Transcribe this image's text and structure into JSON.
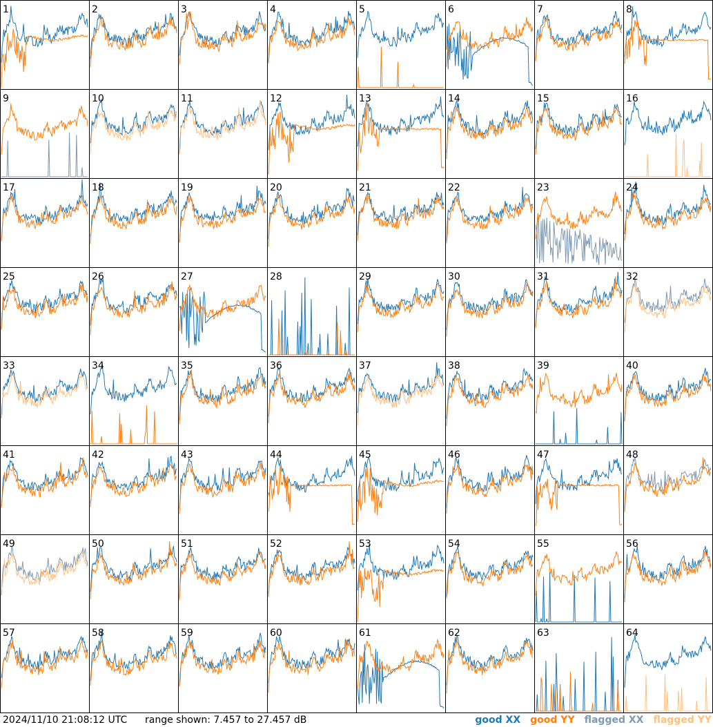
{
  "footer": {
    "timestamp": "2024/11/10 21:08:12 UTC",
    "range_text": "range shown: 7.457 to 27.457 dB"
  },
  "legend": {
    "good_xx": {
      "label": "good XX",
      "color": "#1f77b4"
    },
    "good_yy": {
      "label": "good YY",
      "color": "#ff7f0e"
    },
    "flagged_xx": {
      "label": "flagged XX",
      "color": "#7f99b2"
    },
    "flagged_yy": {
      "label": "flagged YY",
      "color": "#ffc080"
    }
  },
  "chart_data": {
    "type": "line",
    "layout": "small-multiples 8x8",
    "ylim_db": [
      7.457,
      27.457
    ],
    "xlabel": "",
    "ylabel": "",
    "grid": false,
    "legend_position": "bottom-right",
    "panels": [
      {
        "id": "1",
        "xx": "good",
        "yy": "good",
        "profile": "dip"
      },
      {
        "id": "2",
        "xx": "good",
        "yy": "good",
        "profile": "normal"
      },
      {
        "id": "3",
        "xx": "good",
        "yy": "good",
        "profile": "normal"
      },
      {
        "id": "4",
        "xx": "good",
        "yy": "good",
        "profile": "normal"
      },
      {
        "id": "5",
        "xx": "good",
        "yy": "good",
        "profile": "yy-spikes"
      },
      {
        "id": "6",
        "xx": "good",
        "yy": "good",
        "profile": "xx-arch"
      },
      {
        "id": "7",
        "xx": "good",
        "yy": "good",
        "profile": "normal"
      },
      {
        "id": "8",
        "xx": "good",
        "yy": "good",
        "profile": "yy-flat"
      },
      {
        "id": "9",
        "xx": "flagged",
        "yy": "good",
        "profile": "xx-spikes"
      },
      {
        "id": "10",
        "xx": "good",
        "yy": "flagged",
        "profile": "normal"
      },
      {
        "id": "11",
        "xx": "good",
        "yy": "flagged",
        "profile": "normal"
      },
      {
        "id": "12",
        "xx": "good",
        "yy": "good",
        "profile": "dip"
      },
      {
        "id": "13",
        "xx": "good",
        "yy": "good",
        "profile": "yy-flat"
      },
      {
        "id": "14",
        "xx": "good",
        "yy": "good",
        "profile": "normal"
      },
      {
        "id": "15",
        "xx": "good",
        "yy": "good",
        "profile": "normal"
      },
      {
        "id": "16",
        "xx": "good",
        "yy": "flagged",
        "profile": "yy-spikes"
      },
      {
        "id": "17",
        "xx": "good",
        "yy": "good",
        "profile": "normal"
      },
      {
        "id": "18",
        "xx": "good",
        "yy": "good",
        "profile": "normal"
      },
      {
        "id": "19",
        "xx": "good",
        "yy": "good",
        "profile": "normal"
      },
      {
        "id": "20",
        "xx": "good",
        "yy": "good",
        "profile": "normal"
      },
      {
        "id": "21",
        "xx": "good",
        "yy": "good",
        "profile": "normal"
      },
      {
        "id": "22",
        "xx": "good",
        "yy": "good",
        "profile": "normal"
      },
      {
        "id": "23",
        "xx": "flagged",
        "yy": "good",
        "profile": "xx-noisy"
      },
      {
        "id": "24",
        "xx": "good",
        "yy": "good",
        "profile": "normal"
      },
      {
        "id": "25",
        "xx": "good",
        "yy": "good",
        "profile": "normal"
      },
      {
        "id": "26",
        "xx": "good",
        "yy": "good",
        "profile": "normal"
      },
      {
        "id": "27",
        "xx": "good",
        "yy": "good",
        "profile": "xx-arch"
      },
      {
        "id": "28",
        "xx": "good",
        "yy": "good",
        "profile": "yy-spikes-only"
      },
      {
        "id": "29",
        "xx": "good",
        "yy": "good",
        "profile": "normal"
      },
      {
        "id": "30",
        "xx": "good",
        "yy": "good",
        "profile": "normal"
      },
      {
        "id": "31",
        "xx": "good",
        "yy": "good",
        "profile": "normal"
      },
      {
        "id": "32",
        "xx": "flagged",
        "yy": "flagged",
        "profile": "normal"
      },
      {
        "id": "33",
        "xx": "good",
        "yy": "flagged",
        "profile": "normal"
      },
      {
        "id": "34",
        "xx": "good",
        "yy": "good",
        "profile": "yy-spikes"
      },
      {
        "id": "35",
        "xx": "good",
        "yy": "good",
        "profile": "normal"
      },
      {
        "id": "36",
        "xx": "good",
        "yy": "good",
        "profile": "normal"
      },
      {
        "id": "37",
        "xx": "good",
        "yy": "flagged",
        "profile": "normal"
      },
      {
        "id": "38",
        "xx": "good",
        "yy": "good",
        "profile": "normal"
      },
      {
        "id": "39",
        "xx": "good",
        "yy": "good",
        "profile": "xx-spikes"
      },
      {
        "id": "40",
        "xx": "good",
        "yy": "good",
        "profile": "normal"
      },
      {
        "id": "41",
        "xx": "good",
        "yy": "good",
        "profile": "normal"
      },
      {
        "id": "42",
        "xx": "good",
        "yy": "good",
        "profile": "normal"
      },
      {
        "id": "43",
        "xx": "good",
        "yy": "good",
        "profile": "normal"
      },
      {
        "id": "44",
        "xx": "good",
        "yy": "good",
        "profile": "yy-flat"
      },
      {
        "id": "45",
        "xx": "good",
        "yy": "good",
        "profile": "dip"
      },
      {
        "id": "46",
        "xx": "good",
        "yy": "good",
        "profile": "normal"
      },
      {
        "id": "47",
        "xx": "good",
        "yy": "good",
        "profile": "yy-flat"
      },
      {
        "id": "48",
        "xx": "flagged",
        "yy": "good",
        "profile": "normal"
      },
      {
        "id": "49",
        "xx": "flagged",
        "yy": "flagged",
        "profile": "normal"
      },
      {
        "id": "50",
        "xx": "good",
        "yy": "good",
        "profile": "normal"
      },
      {
        "id": "51",
        "xx": "good",
        "yy": "good",
        "profile": "normal"
      },
      {
        "id": "52",
        "xx": "good",
        "yy": "good",
        "profile": "normal"
      },
      {
        "id": "53",
        "xx": "good",
        "yy": "good",
        "profile": "dip"
      },
      {
        "id": "54",
        "xx": "good",
        "yy": "good",
        "profile": "normal"
      },
      {
        "id": "55",
        "xx": "good",
        "yy": "good",
        "profile": "xx-spikes"
      },
      {
        "id": "56",
        "xx": "good",
        "yy": "good",
        "profile": "normal"
      },
      {
        "id": "57",
        "xx": "good",
        "yy": "good",
        "profile": "normal"
      },
      {
        "id": "58",
        "xx": "good",
        "yy": "good",
        "profile": "normal"
      },
      {
        "id": "59",
        "xx": "good",
        "yy": "good",
        "profile": "normal"
      },
      {
        "id": "60",
        "xx": "good",
        "yy": "good",
        "profile": "normal"
      },
      {
        "id": "61",
        "xx": "good",
        "yy": "good",
        "profile": "xx-arch"
      },
      {
        "id": "62",
        "xx": "good",
        "yy": "good",
        "profile": "normal"
      },
      {
        "id": "63",
        "xx": "good",
        "yy": "good",
        "profile": "yy-spikes-only"
      },
      {
        "id": "64",
        "xx": "good",
        "yy": "flagged",
        "profile": "yy-spikes"
      }
    ]
  }
}
